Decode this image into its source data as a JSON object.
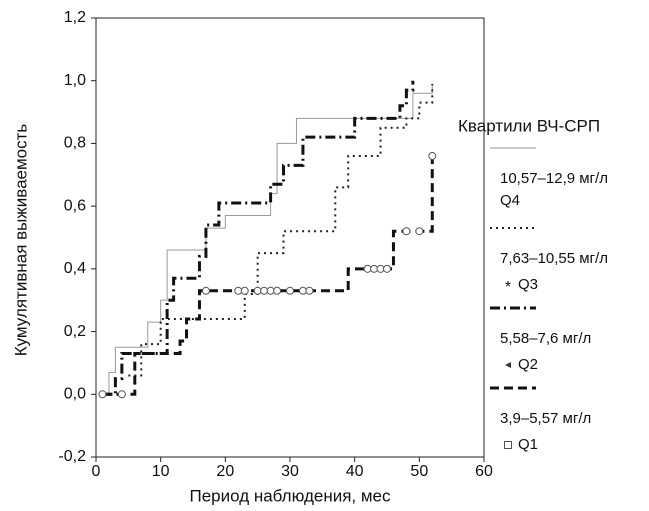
{
  "chart_data": {
    "type": "step",
    "x_label": "Период наблюдения, мес",
    "y_label": "Кумулятивная выживаемость",
    "legend_title": "Квартили ВЧ-СРП",
    "xlim": [
      0,
      60
    ],
    "xticks": [
      0,
      10,
      20,
      30,
      40,
      50,
      60
    ],
    "ylim": [
      -0.2,
      1.2
    ],
    "yticks": [
      {
        "value": -0.2,
        "label": "-0,2"
      },
      {
        "value": 0,
        "label": "0,0"
      },
      {
        "value": 0.2,
        "label": "0,2"
      },
      {
        "value": 0.4,
        "label": "0,4"
      },
      {
        "value": 0.6,
        "label": "0,6"
      },
      {
        "value": 0.8,
        "label": "0,8"
      },
      {
        "value": 1.0,
        "label": "1,0"
      },
      {
        "value": 1.2,
        "label": "1,2"
      }
    ],
    "series": [
      {
        "name": "10,57–12,9 мг/л",
        "quartile": "Q4",
        "color": "#9a9a9a",
        "dash": "solid",
        "marker": "none",
        "x": [
          1,
          2,
          3,
          8,
          10,
          11,
          17,
          20,
          27,
          28,
          31,
          49,
          52
        ],
        "y": [
          0,
          0.07,
          0.15,
          0.23,
          0.3,
          0.46,
          0.53,
          0.57,
          0.64,
          0.8,
          0.88,
          0.96,
          0.99
        ]
      },
      {
        "name": "7,63–10,55 мг/л",
        "quartile": "Q3",
        "color": "#222222",
        "dash": "dotted",
        "marker": "star",
        "x": [
          5,
          7,
          10,
          23,
          25,
          29,
          37,
          39,
          44,
          48,
          50,
          52
        ],
        "y": [
          0.06,
          0.16,
          0.24,
          0.32,
          0.45,
          0.52,
          0.66,
          0.76,
          0.85,
          0.88,
          0.93,
          0.99
        ]
      },
      {
        "name": "5,58–7,6 мг/л",
        "quartile": "Q2",
        "color": "#111111",
        "dash": "dashdot",
        "marker": "triangle",
        "x": [
          1,
          3,
          4,
          11,
          12,
          16,
          17,
          19,
          27,
          29,
          32,
          40,
          47,
          48,
          49
        ],
        "y": [
          0,
          0.05,
          0.13,
          0.3,
          0.37,
          0.44,
          0.54,
          0.61,
          0.67,
          0.73,
          0.82,
          0.88,
          0.92,
          0.97,
          1.0
        ]
      },
      {
        "name": "3,9–5,57 мг/л",
        "quartile": "Q1",
        "color": "#111111",
        "dash": "dashed",
        "marker": "square",
        "x": [
          1,
          6,
          13,
          14,
          16,
          39,
          46,
          51,
          52
        ],
        "y": [
          0,
          0.13,
          0.17,
          0.24,
          0.33,
          0.4,
          0.52,
          0.52,
          0.76
        ],
        "censored_x": [
          1,
          4,
          17,
          22,
          23,
          25,
          26,
          27,
          28,
          30,
          32,
          33,
          42,
          43,
          44,
          45,
          48,
          50,
          52
        ],
        "censored_y": [
          0,
          0,
          0.33,
          0.33,
          0.33,
          0.33,
          0.33,
          0.33,
          0.33,
          0.33,
          0.33,
          0.33,
          0.4,
          0.4,
          0.4,
          0.4,
          0.52,
          0.52,
          0.76
        ]
      }
    ]
  }
}
